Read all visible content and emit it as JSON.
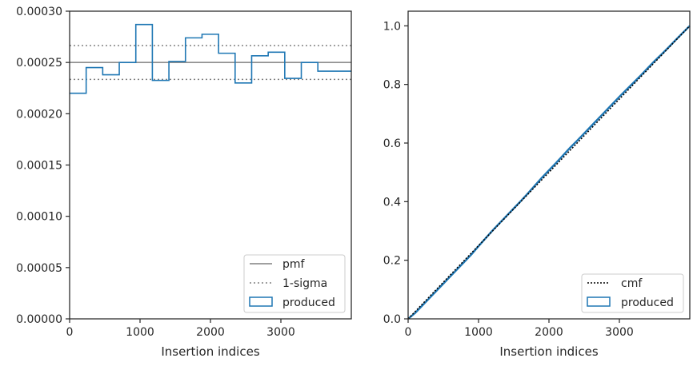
{
  "colors": {
    "produced": "#1f77b4",
    "reference": "#808080",
    "cmf": "#000000",
    "text": "#262626",
    "spine": "#262626",
    "legend_border": "#cccccc"
  },
  "chart_data": [
    {
      "type": "histogram",
      "xlabel": "Insertion indices",
      "ylabel": "",
      "xlim": [
        0,
        4000
      ],
      "ylim": [
        0,
        0.0003
      ],
      "xticks": [
        0,
        1000,
        2000,
        3000
      ],
      "xtick_labels": [
        "0",
        "1000",
        "2000",
        "3000"
      ],
      "yticks": [
        0,
        5e-05,
        0.0001,
        0.00015,
        0.0002,
        0.00025,
        0.0003
      ],
      "ytick_labels": [
        "0.00000",
        "0.00005",
        "0.00010",
        "0.00015",
        "0.00020",
        "0.00025",
        "0.00030"
      ],
      "grid": false,
      "legend_position": "lower right",
      "legend": [
        "pmf",
        "1-sigma",
        "produced"
      ],
      "pmf": 0.00025,
      "sigma_band": [
        0.0002335,
        0.0002665
      ],
      "bin_edges": [
        0,
        235,
        470,
        705,
        940,
        1175,
        1410,
        1645,
        1880,
        2115,
        2350,
        2585,
        2820,
        3055,
        3290,
        3525,
        4000
      ],
      "produced": [
        0.00022,
        0.000245,
        0.000238,
        0.00025,
        0.000287,
        0.0002325,
        0.000251,
        0.000274,
        0.0002775,
        0.000259,
        0.00023,
        0.0002565,
        0.00026,
        0.0002345,
        0.00025,
        0.0002415
      ]
    },
    {
      "type": "line",
      "xlabel": "Insertion indices",
      "ylabel": "",
      "xlim": [
        0,
        4000
      ],
      "ylim": [
        0,
        1.05
      ],
      "xticks": [
        0,
        1000,
        2000,
        3000
      ],
      "xtick_labels": [
        "0",
        "1000",
        "2000",
        "3000"
      ],
      "yticks": [
        0,
        0.2,
        0.4,
        0.6,
        0.8,
        1.0
      ],
      "ytick_labels": [
        "0.0",
        "0.2",
        "0.4",
        "0.6",
        "0.8",
        "1.0"
      ],
      "grid": false,
      "legend_position": "lower right",
      "legend": [
        "cmf",
        "produced"
      ],
      "cmf": {
        "x": [
          0,
          4000
        ],
        "y": [
          0,
          1
        ]
      },
      "produced": {
        "x": [
          0,
          100,
          200,
          300,
          400,
          500,
          600,
          700,
          800,
          900,
          1000,
          1100,
          1200,
          1300,
          1400,
          1500,
          1600,
          1700,
          1800,
          1900,
          2000,
          2100,
          2200,
          2300,
          2400,
          2500,
          2600,
          2700,
          2800,
          2900,
          3000,
          3100,
          3200,
          3300,
          3400,
          3500,
          3600,
          3700,
          3800,
          3900,
          4000
        ],
        "y": [
          0,
          0.02,
          0.045,
          0.07,
          0.095,
          0.12,
          0.145,
          0.17,
          0.195,
          0.22,
          0.248,
          0.275,
          0.302,
          0.327,
          0.352,
          0.377,
          0.402,
          0.428,
          0.455,
          0.482,
          0.507,
          0.532,
          0.558,
          0.584,
          0.608,
          0.633,
          0.658,
          0.683,
          0.708,
          0.733,
          0.758,
          0.782,
          0.806,
          0.83,
          0.855,
          0.88,
          0.903,
          0.927,
          0.952,
          0.976,
          1.0
        ]
      }
    }
  ]
}
